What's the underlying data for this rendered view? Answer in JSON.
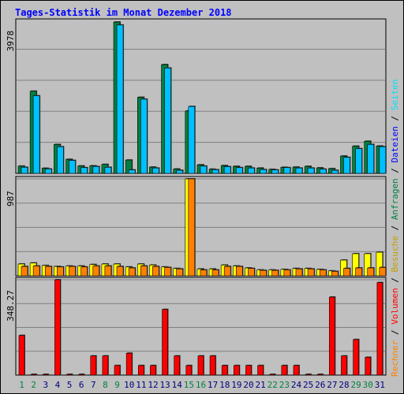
{
  "title": "Tages-Statistik im Monat Dezember 2018",
  "colors": {
    "background": "#c0c0c0",
    "grid": "#808080",
    "anfragen": "#008040",
    "dateien": "#00c0ff",
    "seiten": "#00e0ff",
    "besuche": "#ffff00",
    "rechner": "#ff8000",
    "volumen": "#ff0000",
    "weekday_label": "#000080",
    "weekend_label": "#008040"
  },
  "chart_data": [
    {
      "type": "bar",
      "panel": "top",
      "ymax_label": "3978",
      "ymax": 3978,
      "categories": [
        "1",
        "2",
        "3",
        "4",
        "5",
        "6",
        "7",
        "8",
        "9",
        "10",
        "11",
        "12",
        "13",
        "14",
        "15",
        "16",
        "17",
        "18",
        "19",
        "20",
        "21",
        "22",
        "23",
        "24",
        "25",
        "26",
        "27",
        "28",
        "29",
        "30",
        "31"
      ],
      "weekend_days": [
        "1",
        "2",
        "8",
        "9",
        "15",
        "16",
        "22",
        "23",
        "29",
        "30"
      ],
      "series": [
        {
          "name": "Anfragen",
          "values": [
            190,
            2160,
            135,
            760,
            370,
            195,
            200,
            235,
            3978,
            350,
            2000,
            165,
            2860,
            115,
            1640,
            225,
            110,
            205,
            185,
            185,
            140,
            105,
            160,
            165,
            185,
            145,
            125,
            455,
            715,
            845,
            720
          ]
        },
        {
          "name": "Dateien",
          "values": [
            160,
            2040,
            115,
            700,
            340,
            150,
            180,
            160,
            3900,
            90,
            1950,
            140,
            2770,
            80,
            1760,
            190,
            95,
            175,
            150,
            140,
            100,
            90,
            150,
            140,
            140,
            110,
            80,
            420,
            650,
            760,
            700
          ]
        }
      ]
    },
    {
      "type": "bar",
      "panel": "middle",
      "ymax_label": "987",
      "ymax": 987,
      "categories": [
        "1",
        "2",
        "3",
        "4",
        "5",
        "6",
        "7",
        "8",
        "9",
        "10",
        "11",
        "12",
        "13",
        "14",
        "15",
        "16",
        "17",
        "18",
        "19",
        "20",
        "21",
        "22",
        "23",
        "24",
        "25",
        "26",
        "27",
        "28",
        "29",
        "30",
        "31"
      ],
      "series": [
        {
          "name": "Besuche",
          "values": [
            120,
            130,
            105,
            95,
            100,
            100,
            115,
            120,
            120,
            90,
            120,
            110,
            90,
            75,
            987,
            70,
            70,
            110,
            100,
            80,
            60,
            60,
            65,
            75,
            75,
            65,
            50,
            160,
            225,
            225,
            240
          ]
        },
        {
          "name": "Rechner",
          "values": [
            95,
            100,
            95,
            90,
            95,
            90,
            100,
            100,
            95,
            80,
            100,
            95,
            85,
            70,
            987,
            60,
            60,
            95,
            95,
            75,
            55,
            55,
            60,
            70,
            70,
            60,
            45,
            75,
            80,
            80,
            85
          ]
        }
      ]
    },
    {
      "type": "bar",
      "panel": "bottom",
      "ymax_label": "348.27",
      "ymax": 348.27,
      "categories": [
        "1",
        "2",
        "3",
        "4",
        "5",
        "6",
        "7",
        "8",
        "9",
        "10",
        "11",
        "12",
        "13",
        "14",
        "15",
        "16",
        "17",
        "18",
        "19",
        "20",
        "21",
        "22",
        "23",
        "24",
        "25",
        "26",
        "27",
        "28",
        "29",
        "30",
        "31"
      ],
      "series": [
        {
          "name": "Volumen",
          "values": [
            145,
            0,
            0,
            348.27,
            0,
            0,
            70,
            70,
            35,
            80,
            35,
            35,
            240,
            70,
            35,
            70,
            70,
            35,
            35,
            35,
            35,
            0,
            35,
            35,
            0,
            0,
            285,
            70,
            130,
            65,
            338
          ]
        }
      ]
    }
  ],
  "right_legend": {
    "panel_top": [
      {
        "text": "Anfragen",
        "color": "#008040"
      },
      {
        "text": " / ",
        "color": "#000000"
      },
      {
        "text": "Dateien",
        "color": "#0000ff"
      },
      {
        "text": " / ",
        "color": "#000000"
      },
      {
        "text": "Seiten",
        "color": "#00e0ff"
      }
    ],
    "panel_mid": [
      {
        "text": " / ",
        "color": "#000000"
      },
      {
        "text": "Besuche",
        "color": "#c0a000"
      },
      {
        "text": " / ",
        "color": "#000000"
      }
    ],
    "panel_bot": [
      {
        "text": "Rechner",
        "color": "#ff8000"
      },
      {
        "text": " / ",
        "color": "#000000"
      },
      {
        "text": "Volumen",
        "color": "#ff0000"
      }
    ]
  }
}
